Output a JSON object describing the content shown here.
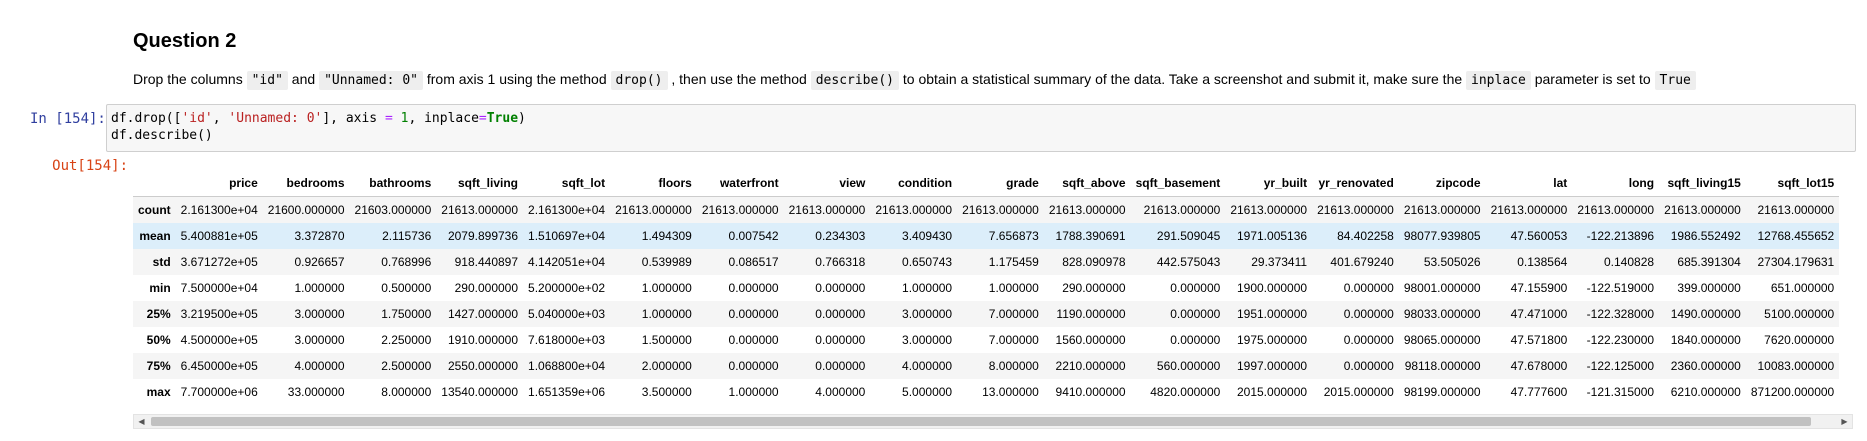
{
  "markdown": {
    "title": "Question 2",
    "text_1": "Drop the columns ",
    "code_1": "\"id\"",
    "text_2": " and ",
    "code_2": "\"Unnamed: 0\"",
    "text_3": " from axis 1 using the method ",
    "code_3": "drop()",
    "text_4": " , then use the method ",
    "code_4": "describe()",
    "text_5": " to obtain a statistical summary of the data. Take a screenshot and submit it, make sure the ",
    "code_5": "inplace",
    "text_6": " parameter is set to ",
    "code_6": "True"
  },
  "input_cell": {
    "prompt": "In [154]:",
    "line1": {
      "t1": "df.drop([",
      "s1": "'id'",
      "t2": ", ",
      "s2": "'Unnamed: 0'",
      "t3": "], axis ",
      "op1": "=",
      "t4": " ",
      "n1": "1",
      "t5": ", inplace",
      "op2": "=",
      "kw1": "True",
      "t6": ")"
    },
    "line2": "df.describe()"
  },
  "output_cell": {
    "prompt": "Out[154]:",
    "columns": [
      "price",
      "bedrooms",
      "bathrooms",
      "sqft_living",
      "sqft_lot",
      "floors",
      "waterfront",
      "view",
      "condition",
      "grade",
      "sqft_above",
      "sqft_basement",
      "yr_built",
      "yr_renovated",
      "zipcode",
      "lat",
      "long",
      "sqft_living15",
      "sqft_lot15"
    ],
    "rows": [
      {
        "label": "count",
        "values": [
          "2.161300e+04",
          "21600.000000",
          "21603.000000",
          "21613.000000",
          "2.161300e+04",
          "21613.000000",
          "21613.000000",
          "21613.000000",
          "21613.000000",
          "21613.000000",
          "21613.000000",
          "21613.000000",
          "21613.000000",
          "21613.000000",
          "21613.000000",
          "21613.000000",
          "21613.000000",
          "21613.000000",
          "21613.000000"
        ]
      },
      {
        "label": "mean",
        "values": [
          "5.400881e+05",
          "3.372870",
          "2.115736",
          "2079.899736",
          "1.510697e+04",
          "1.494309",
          "0.007542",
          "0.234303",
          "3.409430",
          "7.656873",
          "1788.390691",
          "291.509045",
          "1971.005136",
          "84.402258",
          "98077.939805",
          "47.560053",
          "-122.213896",
          "1986.552492",
          "12768.455652"
        ]
      },
      {
        "label": "std",
        "values": [
          "3.671272e+05",
          "0.926657",
          "0.768996",
          "918.440897",
          "4.142051e+04",
          "0.539989",
          "0.086517",
          "0.766318",
          "0.650743",
          "1.175459",
          "828.090978",
          "442.575043",
          "29.373411",
          "401.679240",
          "53.505026",
          "0.138564",
          "0.140828",
          "685.391304",
          "27304.179631"
        ]
      },
      {
        "label": "min",
        "values": [
          "7.500000e+04",
          "1.000000",
          "0.500000",
          "290.000000",
          "5.200000e+02",
          "1.000000",
          "0.000000",
          "0.000000",
          "1.000000",
          "1.000000",
          "290.000000",
          "0.000000",
          "1900.000000",
          "0.000000",
          "98001.000000",
          "47.155900",
          "-122.519000",
          "399.000000",
          "651.000000"
        ]
      },
      {
        "label": "25%",
        "values": [
          "3.219500e+05",
          "3.000000",
          "1.750000",
          "1427.000000",
          "5.040000e+03",
          "1.000000",
          "0.000000",
          "0.000000",
          "3.000000",
          "7.000000",
          "1190.000000",
          "0.000000",
          "1951.000000",
          "0.000000",
          "98033.000000",
          "47.471000",
          "-122.328000",
          "1490.000000",
          "5100.000000"
        ]
      },
      {
        "label": "50%",
        "values": [
          "4.500000e+05",
          "3.000000",
          "2.250000",
          "1910.000000",
          "7.618000e+03",
          "1.500000",
          "0.000000",
          "0.000000",
          "3.000000",
          "7.000000",
          "1560.000000",
          "0.000000",
          "1975.000000",
          "0.000000",
          "98065.000000",
          "47.571800",
          "-122.230000",
          "1840.000000",
          "7620.000000"
        ]
      },
      {
        "label": "75%",
        "values": [
          "6.450000e+05",
          "4.000000",
          "2.500000",
          "2550.000000",
          "1.068800e+04",
          "2.000000",
          "0.000000",
          "0.000000",
          "4.000000",
          "8.000000",
          "2210.000000",
          "560.000000",
          "1997.000000",
          "0.000000",
          "98118.000000",
          "47.678000",
          "-122.125000",
          "2360.000000",
          "10083.000000"
        ]
      },
      {
        "label": "max",
        "values": [
          "7.700000e+06",
          "33.000000",
          "8.000000",
          "13540.000000",
          "1.651359e+06",
          "3.500000",
          "1.000000",
          "4.000000",
          "5.000000",
          "13.000000",
          "9410.000000",
          "4820.000000",
          "2015.000000",
          "2015.000000",
          "98199.000000",
          "47.777600",
          "-121.315000",
          "6210.000000",
          "871200.000000"
        ]
      }
    ],
    "highlighted_row": 1
  },
  "scrollbar": {
    "left_arrow": "◀",
    "right_arrow": "▶"
  }
}
